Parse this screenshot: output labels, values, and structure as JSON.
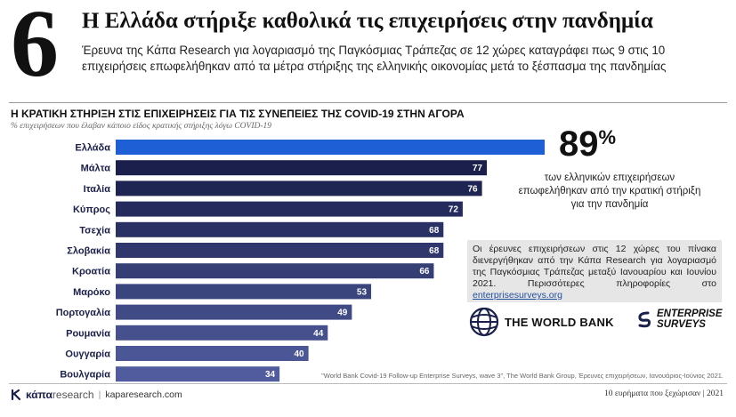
{
  "header": {
    "number": "6",
    "title": "Η Ελλάδα στήριξε καθολικά τις επιχειρήσεις στην πανδημία",
    "subtitle": "Έρευνα της Κάπα Research για λογαριασμό της Παγκόσμιας Τράπεζας σε 12 χώρες καταγράφει πως 9 στις 10 επιχειρήσεις επωφελήθηκαν από τα μέτρα στήριξης της ελληνικής οικονομίας μετά το ξέσπασμα της πανδημίας"
  },
  "chart_data": {
    "type": "bar",
    "orientation": "horizontal",
    "title": "Η ΚΡΑΤΙΚΗ ΣΤΗΡΙΞΗ ΣΤΙΣ ΕΠΙΧΕΙΡΗΣΕΙΣ ΓΙΑ ΤΙΣ ΣΥΝΕΠΕΙΕΣ ΤΗΣ COVID-19 ΣΤΗΝ ΑΓΟΡΑ",
    "subtitle": "% επιχειρήσεων που έλαβαν κάποιο είδος κρατικής στήριξης λόγω COVID-19",
    "categories": [
      "Ελλάδα",
      "Μάλτα",
      "Ιταλία",
      "Κύπρος",
      "Τσεχία",
      "Σλοβακία",
      "Κροατία",
      "Μαρόκο",
      "Πορτογαλία",
      "Ρουμανία",
      "Ουγγαρία",
      "Βουλγαρία"
    ],
    "values": [
      89,
      77,
      76,
      72,
      68,
      68,
      66,
      53,
      49,
      44,
      40,
      34
    ],
    "value_labels": [
      "",
      "77",
      "76",
      "72",
      "68",
      "68",
      "66",
      "53",
      "49",
      "44",
      "40",
      "34"
    ],
    "highlight_index": 0,
    "colors": {
      "highlight": "#1f5fd6",
      "dark": "#1a1f4b",
      "mid": "#2f3574",
      "light": "#4f5da0"
    },
    "xlim": [
      0,
      100
    ]
  },
  "callout": {
    "value": "89",
    "unit": "%",
    "text": "των ελληνικών επιχειρήσεων επωφελήθηκαν από την κρατική στήριξη για την πανδημία"
  },
  "info": {
    "text": "Οι έρευνες επιχειρήσεων στις 12 χώρες του πίνακα διενεργήθηκαν από την Κάπα Research για λογαριασμό της Παγκόσμιας Τράπεζας μεταξύ Ιανουαρίου και Ιουνίου 2021. Περισσότερες πληροφορίες στο",
    "link": "enterprisesurveys.org"
  },
  "logos": {
    "world_bank": "THE WORLD BANK",
    "enterprise_line1": "ENTERPRISE",
    "enterprise_line2": "SURVEYS"
  },
  "source": "\"World Bank Covid-19 Follow-up Enterprise Surveys, wave 3\", The World Bank Group, Έρευνες επιχειρήσεων, Ιανουάριος-Ιούνιος 2021.",
  "footer": {
    "brand_a": "κάπα",
    "brand_b": "research",
    "site": "kaparesearch.com",
    "right": "10 ευρήματα που ξεχώρισαν | 2021"
  }
}
